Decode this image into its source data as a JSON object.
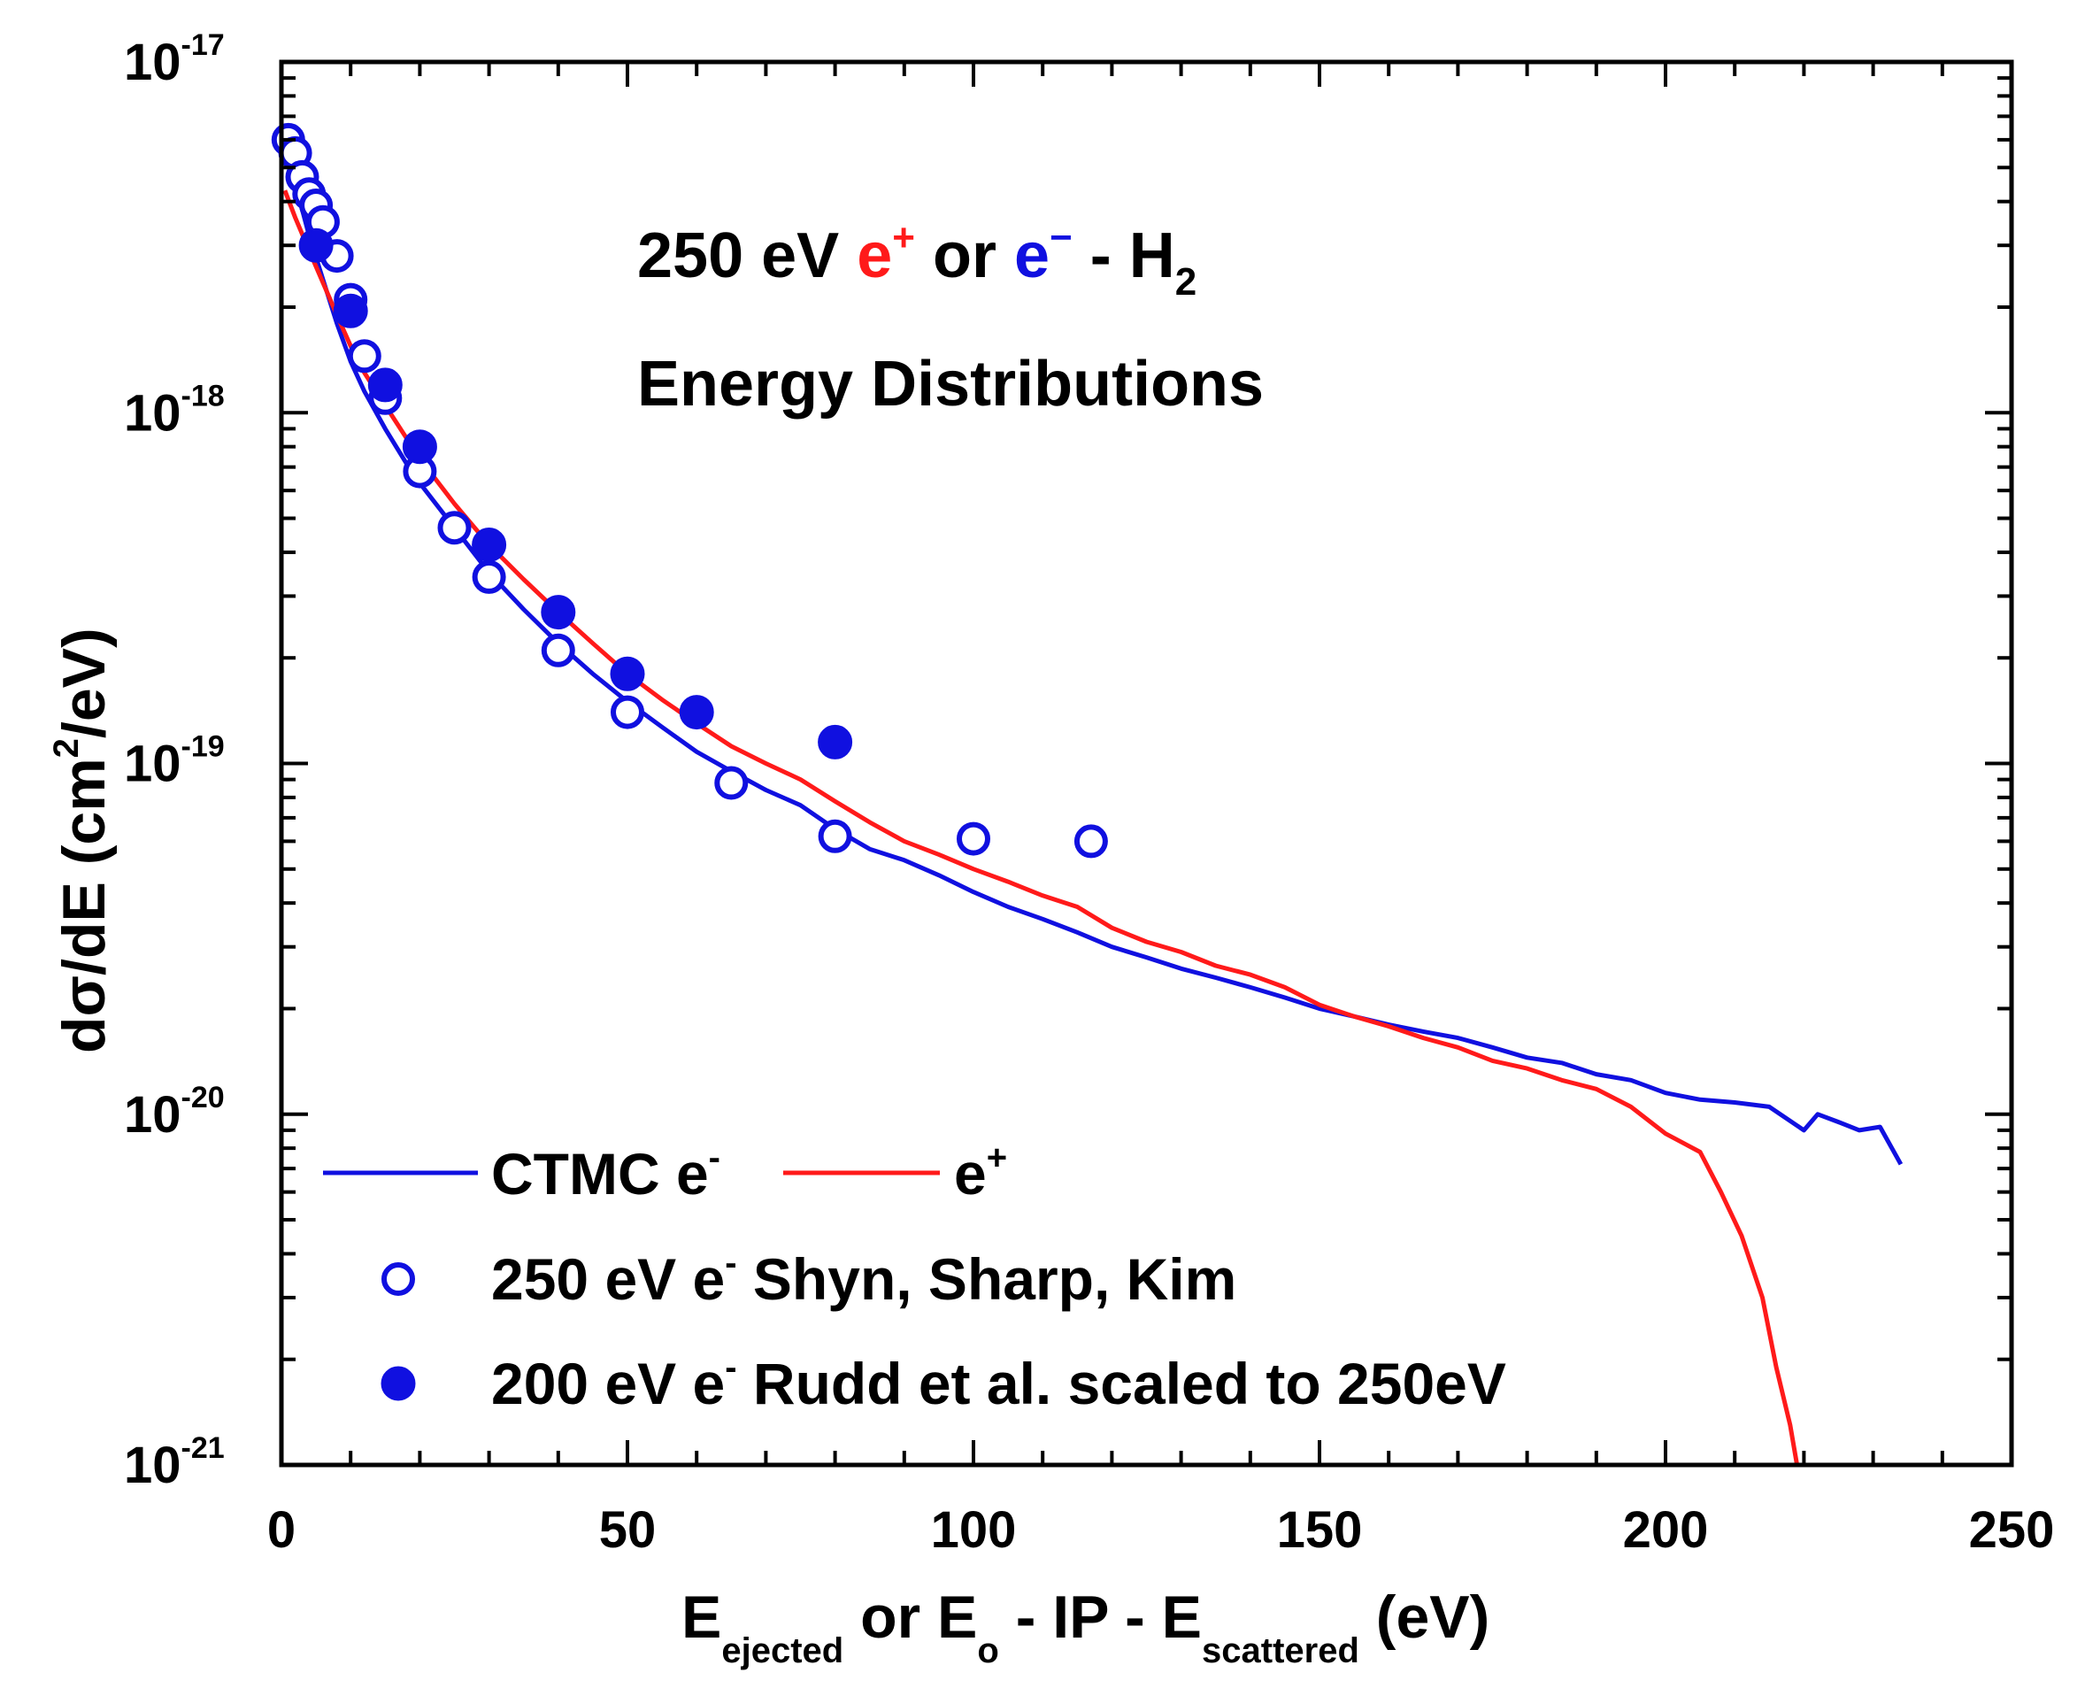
{
  "chart_data": {
    "type": "line",
    "title": {
      "line1": {
        "prefix": "250 eV ",
        "positron": "e",
        "positron_sup": "+",
        "mid": " or ",
        "electron": "e",
        "electron_sup": "−",
        "suffix": " - H",
        "suffix_sub": "2"
      },
      "line2": "Energy Distributions"
    },
    "xlabel": {
      "p1": "E",
      "s1": "ejected",
      "p2": " or E",
      "s2": "o",
      "p3": " - IP - E",
      "s3": "scattered",
      "p4": " (eV)"
    },
    "ylabel": {
      "prefix": "dσ/dE (cm",
      "sup": "2",
      "suffix": "/eV)"
    },
    "xlim": [
      0,
      250
    ],
    "ylim": [
      1e-21,
      1e-17
    ],
    "yscale": "log",
    "xticks": [
      0,
      50,
      100,
      150,
      200,
      250
    ],
    "xtick_labels": [
      "0",
      "50",
      "100",
      "150",
      "200",
      "250"
    ],
    "yticks": [
      {
        "value": 1e-17,
        "mantissa": "10",
        "exponent": "-17"
      },
      {
        "value": 1e-18,
        "mantissa": "10",
        "exponent": "-18"
      },
      {
        "value": 1e-19,
        "mantissa": "10",
        "exponent": "-19"
      },
      {
        "value": 1e-20,
        "mantissa": "10",
        "exponent": "-20"
      },
      {
        "value": 1e-21,
        "mantissa": "10",
        "exponent": "-21"
      }
    ],
    "colors": {
      "electron": "#1010e0",
      "positron": "#ff1a1a",
      "axis": "#000000"
    },
    "legend": {
      "placement": "bottom-left",
      "entries": [
        {
          "label": "CTMC e",
          "sup": "-",
          "marker": "line",
          "series": "ctmc_electron"
        },
        {
          "label": "e",
          "sup": "+",
          "marker": "line",
          "series": "ctmc_positron"
        },
        {
          "label": "250 eV e",
          "sup": "-",
          "label2": " Shyn, Sharp, Kim",
          "marker": "open-circle",
          "series": "shyn_sharp_kim"
        },
        {
          "label": "200 eV e",
          "sup": "-",
          "label2": " Rudd et al. scaled to 250eV",
          "marker": "filled-circle",
          "series": "rudd_scaled"
        }
      ]
    },
    "series": [
      {
        "name": "CTMC e-",
        "key": "ctmc_electron",
        "style": "line",
        "color": "#1010e0",
        "points": [
          [
            0.5,
            6.2e-18
          ],
          [
            2,
            4.5e-18
          ],
          [
            4,
            3.2e-18
          ],
          [
            6,
            2.4e-18
          ],
          [
            8,
            1.8e-18
          ],
          [
            10,
            1.4e-18
          ],
          [
            12,
            1.15e-18
          ],
          [
            15,
            9e-19
          ],
          [
            18,
            7.2e-19
          ],
          [
            20,
            6.3e-19
          ],
          [
            25,
            4.7e-19
          ],
          [
            30,
            3.5e-19
          ],
          [
            35,
            2.75e-19
          ],
          [
            40,
            2.2e-19
          ],
          [
            45,
            1.8e-19
          ],
          [
            50,
            1.5e-19
          ],
          [
            55,
            1.27e-19
          ],
          [
            60,
            1.08e-19
          ],
          [
            65,
            9.5e-20
          ],
          [
            70,
            8.4e-20
          ],
          [
            75,
            7.6e-20
          ],
          [
            80,
            6.5e-20
          ],
          [
            85,
            5.7e-20
          ],
          [
            90,
            5.3e-20
          ],
          [
            95,
            4.8e-20
          ],
          [
            100,
            4.3e-20
          ],
          [
            105,
            3.9e-20
          ],
          [
            110,
            3.6e-20
          ],
          [
            115,
            3.3e-20
          ],
          [
            120,
            3e-20
          ],
          [
            125,
            2.8e-20
          ],
          [
            130,
            2.6e-20
          ],
          [
            135,
            2.45e-20
          ],
          [
            140,
            2.3e-20
          ],
          [
            145,
            2.15e-20
          ],
          [
            150,
            2e-20
          ],
          [
            155,
            1.9e-20
          ],
          [
            160,
            1.8e-20
          ],
          [
            165,
            1.72e-20
          ],
          [
            170,
            1.65e-20
          ],
          [
            175,
            1.55e-20
          ],
          [
            180,
            1.45e-20
          ],
          [
            185,
            1.4e-20
          ],
          [
            190,
            1.3e-20
          ],
          [
            195,
            1.25e-20
          ],
          [
            200,
            1.15e-20
          ],
          [
            205,
            1.1e-20
          ],
          [
            210,
            1.08e-20
          ],
          [
            215,
            1.05e-20
          ],
          [
            220,
            9e-21
          ],
          [
            222,
            1e-20
          ],
          [
            225,
            9.5e-21
          ],
          [
            228,
            9e-21
          ],
          [
            231,
            9.2e-21
          ],
          [
            234,
            7.2e-21
          ]
        ]
      },
      {
        "name": "CTMC e+",
        "key": "ctmc_positron",
        "style": "line",
        "color": "#ff1a1a",
        "points": [
          [
            0.5,
            4.3e-18
          ],
          [
            2,
            3.6e-18
          ],
          [
            4,
            2.9e-18
          ],
          [
            6,
            2.35e-18
          ],
          [
            8,
            1.9e-18
          ],
          [
            10,
            1.55e-18
          ],
          [
            12,
            1.3e-18
          ],
          [
            15,
            1.05e-18
          ],
          [
            18,
            8.5e-19
          ],
          [
            20,
            7.4e-19
          ],
          [
            25,
            5.5e-19
          ],
          [
            30,
            4.2e-19
          ],
          [
            35,
            3.35e-19
          ],
          [
            40,
            2.7e-19
          ],
          [
            45,
            2.2e-19
          ],
          [
            50,
            1.8e-19
          ],
          [
            55,
            1.52e-19
          ],
          [
            60,
            1.3e-19
          ],
          [
            65,
            1.12e-19
          ],
          [
            70,
            1e-19
          ],
          [
            75,
            9e-20
          ],
          [
            80,
            7.8e-20
          ],
          [
            85,
            6.8e-20
          ],
          [
            90,
            6e-20
          ],
          [
            95,
            5.5e-20
          ],
          [
            100,
            5e-20
          ],
          [
            105,
            4.6e-20
          ],
          [
            110,
            4.2e-20
          ],
          [
            115,
            3.9e-20
          ],
          [
            120,
            3.4e-20
          ],
          [
            125,
            3.1e-20
          ],
          [
            130,
            2.9e-20
          ],
          [
            135,
            2.65e-20
          ],
          [
            140,
            2.5e-20
          ],
          [
            145,
            2.3e-20
          ],
          [
            150,
            2.05e-20
          ],
          [
            155,
            1.9e-20
          ],
          [
            160,
            1.78e-20
          ],
          [
            165,
            1.65e-20
          ],
          [
            170,
            1.55e-20
          ],
          [
            175,
            1.42e-20
          ],
          [
            180,
            1.35e-20
          ],
          [
            185,
            1.25e-20
          ],
          [
            190,
            1.18e-20
          ],
          [
            195,
            1.05e-20
          ],
          [
            200,
            8.8e-21
          ],
          [
            205,
            7.8e-21
          ],
          [
            208,
            6e-21
          ],
          [
            211,
            4.5e-21
          ],
          [
            214,
            3e-21
          ],
          [
            216,
            1.9e-21
          ],
          [
            218,
            1.3e-21
          ],
          [
            219,
            1e-21
          ]
        ]
      },
      {
        "name": "250 eV e- Shyn, Sharp, Kim",
        "key": "shyn_sharp_kim",
        "style": "open-circle",
        "color": "#1010e0",
        "points": [
          [
            1,
            6e-18
          ],
          [
            2,
            5.5e-18
          ],
          [
            3,
            4.7e-18
          ],
          [
            4,
            4.2e-18
          ],
          [
            5,
            3.9e-18
          ],
          [
            6,
            3.5e-18
          ],
          [
            8,
            2.8e-18
          ],
          [
            10,
            2.1e-18
          ],
          [
            12,
            1.45e-18
          ],
          [
            15,
            1.1e-18
          ],
          [
            20,
            6.8e-19
          ],
          [
            25,
            4.7e-19
          ],
          [
            30,
            3.4e-19
          ],
          [
            40,
            2.1e-19
          ],
          [
            50,
            1.4e-19
          ],
          [
            65,
            8.8e-20
          ],
          [
            80,
            6.2e-20
          ],
          [
            100,
            6.1e-20
          ],
          [
            117,
            6e-20
          ]
        ]
      },
      {
        "name": "200 eV e- Rudd et al. scaled to 250eV",
        "key": "rudd_scaled",
        "style": "filled-circle",
        "color": "#1010e0",
        "points": [
          [
            5,
            3e-18
          ],
          [
            10,
            1.95e-18
          ],
          [
            15,
            1.2e-18
          ],
          [
            20,
            8e-19
          ],
          [
            30,
            4.2e-19
          ],
          [
            40,
            2.7e-19
          ],
          [
            50,
            1.8e-19
          ],
          [
            60,
            1.4e-19
          ],
          [
            80,
            1.15e-19
          ]
        ]
      }
    ]
  }
}
